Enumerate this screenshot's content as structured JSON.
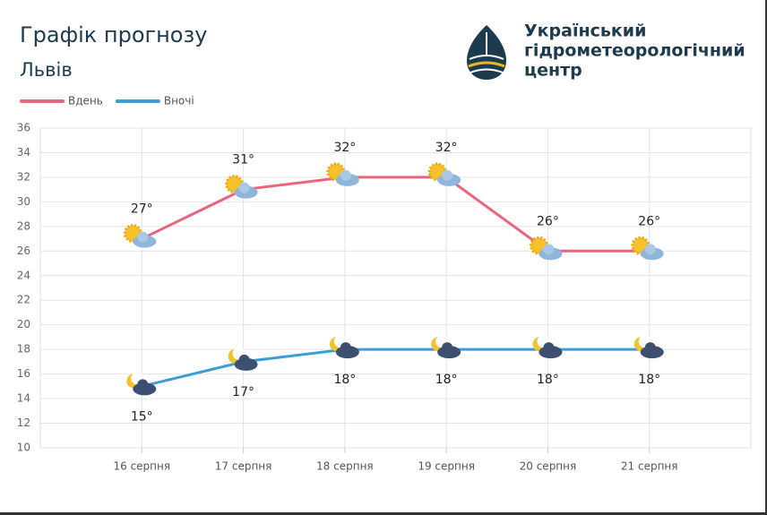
{
  "organization": [
    "Український",
    "гідрометеорологічний",
    "центр"
  ],
  "chart_data": {
    "type": "line",
    "title": "Графік прогнозу",
    "subtitle": "Львів",
    "categories": [
      "16 серпня",
      "17 серпня",
      "18 серпня",
      "19 серпня",
      "20 серпня",
      "21 серпня"
    ],
    "series": [
      {
        "name": "Вдень",
        "color": "#e8677f",
        "values": [
          27,
          31,
          32,
          32,
          26,
          26
        ],
        "value_labels": [
          "27°",
          "31°",
          "32°",
          "32°",
          "26°",
          "26°"
        ]
      },
      {
        "name": "Вночі",
        "color": "#3e9dd6",
        "values": [
          15,
          17,
          18,
          18,
          18,
          18
        ],
        "value_labels": [
          "15°",
          "17°",
          "18°",
          "18°",
          "18°",
          "18°"
        ]
      }
    ],
    "ylim": [
      10,
      36
    ],
    "yticks": [
      10,
      12,
      14,
      16,
      18,
      20,
      22,
      24,
      26,
      28,
      30,
      32,
      34,
      36
    ],
    "grid": true,
    "legend": "top-left"
  }
}
